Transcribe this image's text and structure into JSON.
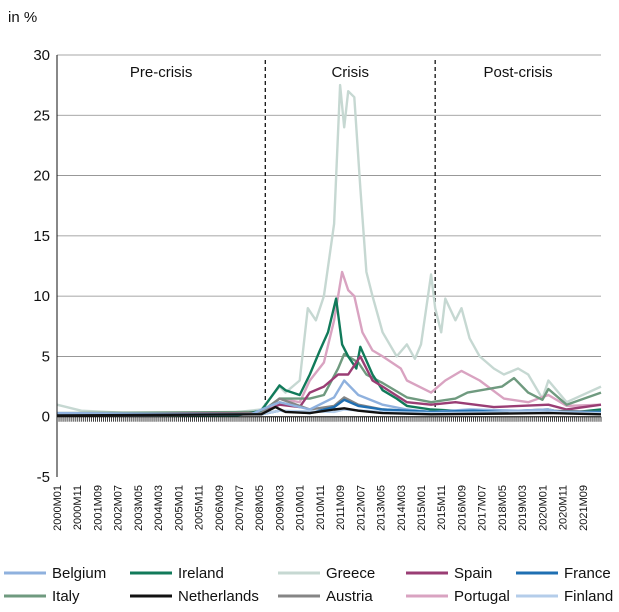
{
  "chart_data": {
    "type": "line",
    "ylabel": "in %",
    "ylim": [
      -5,
      30
    ],
    "yticks": [
      -5,
      0,
      5,
      10,
      15,
      20,
      25,
      30
    ],
    "grid": true,
    "legend_position": "bottom",
    "x_tick_labels": [
      "2000M01",
      "2000M11",
      "2001M09",
      "2002M07",
      "2003M05",
      "2004M03",
      "2005M01",
      "2005M11",
      "2006M09",
      "2007M07",
      "2008M05",
      "2009M03",
      "2010M01",
      "2010M11",
      "2011M09",
      "2012M07",
      "2013M05",
      "2014M03",
      "2015M01",
      "2015M11",
      "2016M09",
      "2017M07",
      "2018M05",
      "2019M03",
      "2020M01",
      "2020M11",
      "2021M09"
    ],
    "period_start": "2000M01",
    "period_end": "2022M06",
    "period_dividers": [
      "2008M08",
      "2015M08"
    ],
    "periods": [
      "Pre-crisis",
      "Crisis",
      "Post-crisis"
    ],
    "series": [
      {
        "name": "Belgium",
        "color": "#8fb1de",
        "x": [
          "2000M01",
          "2008M01",
          "2008M09",
          "2009M03",
          "2010M06",
          "2011M06",
          "2011M11",
          "2012M06",
          "2013M06",
          "2014M06",
          "2015M06",
          "2017M01",
          "2019M01",
          "2020M04",
          "2021M01",
          "2022M06"
        ],
        "values": [
          0.3,
          0.2,
          0.8,
          1.2,
          0.6,
          1.6,
          3.0,
          1.8,
          1.0,
          0.6,
          0.4,
          0.6,
          0.5,
          0.6,
          0.3,
          0.4
        ]
      },
      {
        "name": "Ireland",
        "color": "#117a5a",
        "x": [
          "2000M01",
          "2007M06",
          "2008M06",
          "2009M03",
          "2009M06",
          "2010M01",
          "2010M06",
          "2010M11",
          "2011M03",
          "2011M07",
          "2011M10",
          "2012M01",
          "2012M05",
          "2012M07",
          "2013M01",
          "2013M06",
          "2014M01",
          "2014M06",
          "2015M06",
          "2016M06",
          "2018M01",
          "2020M04",
          "2021M01",
          "2022M06"
        ],
        "values": [
          0.2,
          0.1,
          0.5,
          2.6,
          2.2,
          1.8,
          3.5,
          5.5,
          7.0,
          9.8,
          6.0,
          5.0,
          4.0,
          5.8,
          3.5,
          2.2,
          1.5,
          0.9,
          0.6,
          0.5,
          0.4,
          0.6,
          0.3,
          0.6
        ]
      },
      {
        "name": "Greece",
        "color": "#c6d8d2",
        "x": [
          "2000M01",
          "2001M01",
          "2003M01",
          "2007M01",
          "2008M06",
          "2009M03",
          "2009M06",
          "2010M01",
          "2010M05",
          "2010M09",
          "2011M01",
          "2011M06",
          "2011M09",
          "2011M11",
          "2012M01",
          "2012M04",
          "2012M07",
          "2012M10",
          "2013M01",
          "2013M06",
          "2014M01",
          "2014M06",
          "2014M10",
          "2015M01",
          "2015M06",
          "2015M08",
          "2015M11",
          "2016M01",
          "2016M06",
          "2016M09",
          "2017M01",
          "2017M06",
          "2018M01",
          "2018M06",
          "2019M01",
          "2019M06",
          "2020M01",
          "2020M04",
          "2021M01",
          "2022M06"
        ],
        "values": [
          1.0,
          0.5,
          0.3,
          0.3,
          0.6,
          2.5,
          2.0,
          3.0,
          9.0,
          8.0,
          10.0,
          16.0,
          27.5,
          24.0,
          27.0,
          26.5,
          19.0,
          12.0,
          10.0,
          7.0,
          5.0,
          6.0,
          4.8,
          6.0,
          11.8,
          9.0,
          7.0,
          9.8,
          8.0,
          9.0,
          6.5,
          5.0,
          4.0,
          3.5,
          4.0,
          3.5,
          1.5,
          3.0,
          1.2,
          2.5
        ]
      },
      {
        "name": "Spain",
        "color": "#9a3d74",
        "x": [
          "2000M01",
          "2008M06",
          "2009M03",
          "2010M01",
          "2010M06",
          "2011M01",
          "2011M08",
          "2012M01",
          "2012M07",
          "2013M01",
          "2013M06",
          "2014M06",
          "2015M06",
          "2016M06",
          "2018M01",
          "2020M04",
          "2021M01",
          "2022M06"
        ],
        "values": [
          0.2,
          0.3,
          1.0,
          0.8,
          2.0,
          2.5,
          3.5,
          3.5,
          5.0,
          3.0,
          2.5,
          1.2,
          1.0,
          1.2,
          0.8,
          1.0,
          0.6,
          1.0
        ]
      },
      {
        "name": "France",
        "color": "#1f6fb2",
        "x": [
          "2000M01",
          "2008M06",
          "2009M03",
          "2010M06",
          "2011M06",
          "2011M11",
          "2012M06",
          "2013M06",
          "2015M06",
          "2017M03",
          "2019M01",
          "2020M04",
          "2022M06"
        ],
        "values": [
          0.1,
          0.2,
          0.5,
          0.3,
          0.8,
          1.4,
          0.9,
          0.6,
          0.4,
          0.5,
          0.3,
          0.4,
          0.4
        ]
      },
      {
        "name": "Italy",
        "color": "#6f9a7f",
        "x": [
          "2000M01",
          "2008M06",
          "2009M03",
          "2010M06",
          "2011M01",
          "2011M08",
          "2011M11",
          "2012M06",
          "2012M10",
          "2013M06",
          "2014M06",
          "2015M06",
          "2016M06",
          "2016M12",
          "2018M05",
          "2018M11",
          "2019M06",
          "2020M01",
          "2020M04",
          "2021M01",
          "2022M06"
        ],
        "values": [
          0.3,
          0.4,
          1.5,
          1.5,
          1.8,
          4.0,
          5.2,
          4.5,
          3.5,
          2.8,
          1.6,
          1.2,
          1.5,
          2.0,
          2.5,
          3.2,
          2.0,
          1.4,
          2.3,
          1.0,
          2.0
        ]
      },
      {
        "name": "Netherlands",
        "color": "#111111",
        "x": [
          "2000M01",
          "2008M06",
          "2009M01",
          "2009M06",
          "2010M06",
          "2011M06",
          "2011M11",
          "2012M06",
          "2013M06",
          "2015M06",
          "2020M04",
          "2022M06"
        ],
        "values": [
          0.1,
          0.2,
          0.8,
          0.4,
          0.3,
          0.6,
          0.7,
          0.5,
          0.3,
          0.2,
          0.3,
          0.2
        ]
      },
      {
        "name": "Austria",
        "color": "#858585",
        "x": [
          "2000M01",
          "2008M06",
          "2009M03",
          "2010M06",
          "2011M06",
          "2011M11",
          "2012M06",
          "2013M06",
          "2015M06",
          "2020M04",
          "2022M06"
        ],
        "values": [
          0.1,
          0.3,
          1.5,
          0.6,
          0.9,
          1.6,
          1.0,
          0.6,
          0.4,
          0.5,
          0.4
        ]
      },
      {
        "name": "Portugal",
        "color": "#d9a3c1",
        "x": [
          "2000M01",
          "2008M06",
          "2009M03",
          "2010M01",
          "2010M06",
          "2011M01",
          "2011M06",
          "2011M10",
          "2012M01",
          "2012M04",
          "2012M08",
          "2013M01",
          "2013M06",
          "2014M03",
          "2014M06",
          "2015M06",
          "2016M01",
          "2016M09",
          "2017M06",
          "2018M06",
          "2019M06",
          "2020M04",
          "2021M01",
          "2022M06"
        ],
        "values": [
          0.2,
          0.3,
          1.5,
          1.2,
          3.0,
          4.5,
          8.0,
          12.0,
          10.5,
          10.0,
          7.0,
          5.5,
          5.0,
          4.0,
          3.0,
          2.0,
          3.0,
          3.8,
          3.0,
          1.5,
          1.2,
          1.8,
          0.9,
          1.0
        ]
      },
      {
        "name": "Finland",
        "color": "#b4cdea",
        "x": [
          "2000M01",
          "2008M06",
          "2009M03",
          "2011M06",
          "2011M11",
          "2013M06",
          "2015M06",
          "2020M04",
          "2022M06"
        ],
        "values": [
          0.1,
          0.2,
          0.5,
          0.4,
          0.6,
          0.4,
          0.3,
          0.4,
          0.3
        ]
      }
    ]
  }
}
